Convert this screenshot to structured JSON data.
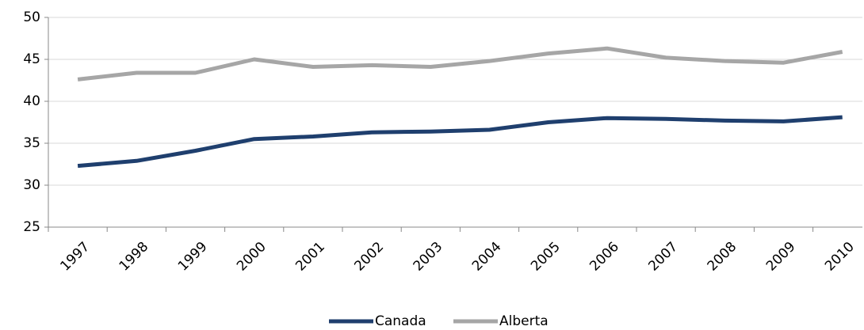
{
  "chart_data": {
    "type": "line",
    "categories": [
      "1997",
      "1998",
      "1999",
      "2000",
      "2001",
      "2002",
      "2003",
      "2004",
      "2005",
      "2006",
      "2007",
      "2008",
      "2009",
      "2010"
    ],
    "series": [
      {
        "name": "Canada",
        "color": "#1f3f6e",
        "values": [
          32.3,
          32.9,
          34.1,
          35.5,
          35.8,
          36.3,
          36.4,
          36.6,
          37.5,
          38.0,
          37.9,
          37.7,
          37.6,
          38.1
        ]
      },
      {
        "name": "Alberta",
        "color": "#a6a6a6",
        "values": [
          42.6,
          43.4,
          43.4,
          45.0,
          44.1,
          44.3,
          44.1,
          44.8,
          45.7,
          46.3,
          45.2,
          44.8,
          44.6,
          45.9
        ]
      }
    ],
    "ylim": [
      25,
      50
    ],
    "yticks": [
      25,
      30,
      35,
      40,
      45,
      50
    ],
    "grid": true,
    "legend": "bottom"
  }
}
